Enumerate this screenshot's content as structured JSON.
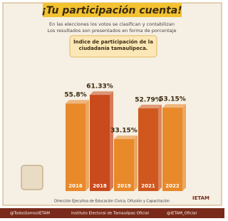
{
  "header": {
    "title": "¡Tu participación cuenta!",
    "subtitle": [
      "En las elecciones los votos se clasifican y contabilizan",
      "Los resultados son presentados en forma de porcentaje"
    ]
  },
  "chart_data": {
    "type": "bar",
    "title": "Índice de participación de la ciudadanía tamaulipeca.",
    "categories": [
      "2016",
      "2018",
      "2019",
      "2021",
      "2022"
    ],
    "values": [
      55.8,
      61.33,
      33.15,
      52.79,
      53.15
    ],
    "value_labels": [
      "55.8%",
      "61.33%",
      "33.15%",
      "52.79%",
      "53.15%"
    ],
    "colors": [
      "#e8892a",
      "#c94a1c",
      "#e8892a",
      "#d0581f",
      "#e8892a"
    ]
  },
  "footer": {
    "credit": "Dirección Ejecutiva de Educación Cívica, Difusión y Capacitación",
    "logo": "IETAM",
    "social": [
      "@TodosSomosIETAM",
      "Instituto Electoral de Tamaulipas Oficial",
      "@IETAM_Oficial"
    ]
  }
}
